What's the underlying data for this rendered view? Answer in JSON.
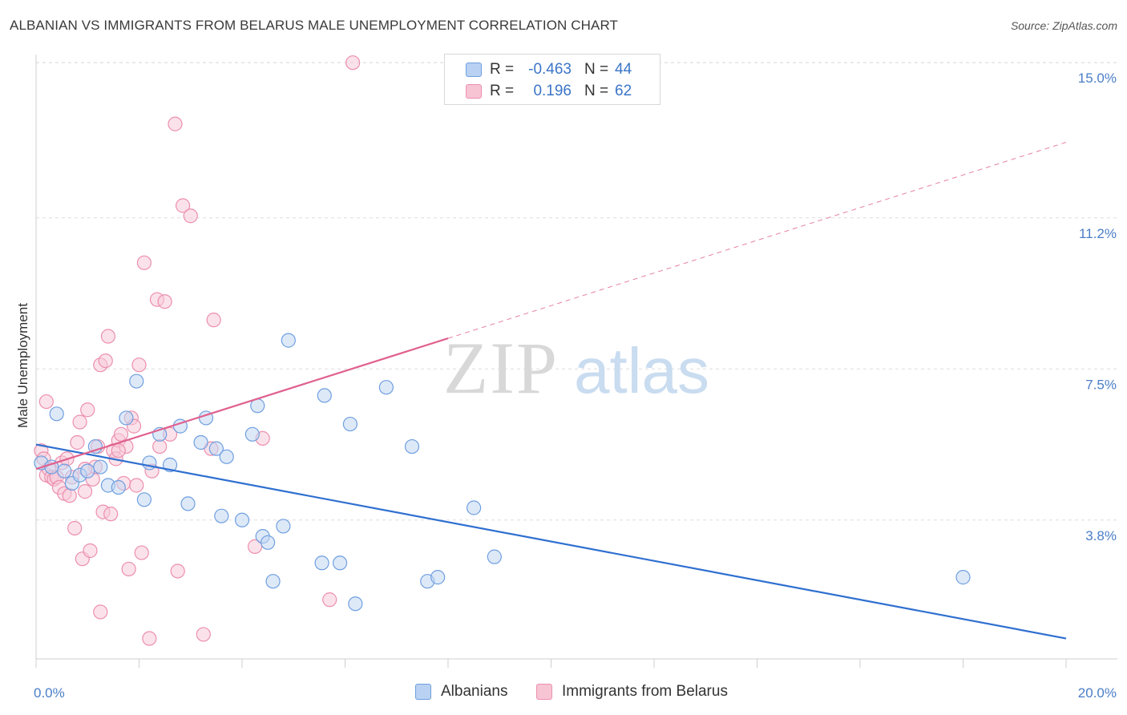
{
  "title": "ALBANIAN VS IMMIGRANTS FROM BELARUS MALE UNEMPLOYMENT CORRELATION CHART",
  "source": "Source: ZipAtlas.com",
  "watermark": {
    "zip": "ZIP",
    "atlas": "atlas"
  },
  "legend": {
    "rows": [
      {
        "r_label": "R =",
        "r_value": "-0.463",
        "n_label": "N =",
        "n_value": "44",
        "fill": "#b9d1f2",
        "stroke": "#6f9fe0"
      },
      {
        "r_label": "R =",
        "r_value": "0.196",
        "n_label": "N =",
        "n_value": "62",
        "fill": "#f7c4d4",
        "stroke": "#ec8fae"
      }
    ]
  },
  "bottom_legend": {
    "albanians": "Albanians",
    "belarus": "Immigrants from Belarus"
  },
  "chart_data": {
    "type": "scatter",
    "ylabel": "Male Unemployment",
    "xlim": [
      0,
      20
    ],
    "ylim": [
      0.4,
      15.2
    ],
    "x_ticks": [
      {
        "value": 0,
        "label": "0.0%"
      },
      {
        "value": 20,
        "label": "20.0%"
      }
    ],
    "y_ticks": [
      {
        "value": 3.8,
        "label": "3.8%"
      },
      {
        "value": 7.5,
        "label": "7.5%"
      },
      {
        "value": 11.2,
        "label": "11.2%"
      },
      {
        "value": 15.0,
        "label": "15.0%"
      }
    ],
    "grid": true,
    "colors": {
      "albanians": "#6f9fe0",
      "albanians_fill": "#c2d7f3",
      "belarus": "#ec8fae",
      "belarus_fill": "#f8cbd9",
      "albanians_line": "#2f6fd0",
      "belarus_line": "#e0608e"
    },
    "series": [
      {
        "name": "Albanians",
        "points": [
          [
            0.1,
            5.2
          ],
          [
            0.3,
            5.1
          ],
          [
            0.4,
            6.4
          ],
          [
            0.55,
            5.0
          ],
          [
            0.7,
            4.7
          ],
          [
            0.85,
            4.9
          ],
          [
            1.0,
            5.0
          ],
          [
            1.15,
            5.6
          ],
          [
            1.25,
            5.1
          ],
          [
            1.4,
            4.65
          ],
          [
            1.6,
            4.6
          ],
          [
            1.75,
            6.3
          ],
          [
            1.95,
            7.2
          ],
          [
            2.1,
            4.3
          ],
          [
            2.2,
            5.2
          ],
          [
            2.4,
            5.9
          ],
          [
            2.6,
            5.15
          ],
          [
            2.8,
            6.1
          ],
          [
            2.95,
            4.2
          ],
          [
            3.2,
            5.7
          ],
          [
            3.3,
            6.3
          ],
          [
            3.5,
            5.55
          ],
          [
            3.7,
            5.35
          ],
          [
            3.6,
            3.9
          ],
          [
            4.0,
            3.8
          ],
          [
            4.2,
            5.9
          ],
          [
            4.3,
            6.6
          ],
          [
            4.4,
            3.4
          ],
          [
            4.8,
            3.65
          ],
          [
            4.5,
            3.25
          ],
          [
            4.9,
            8.2
          ],
          [
            4.6,
            2.3
          ],
          [
            5.6,
            6.85
          ],
          [
            5.55,
            2.75
          ],
          [
            5.9,
            2.75
          ],
          [
            6.1,
            6.15
          ],
          [
            6.2,
            1.75
          ],
          [
            6.8,
            7.05
          ],
          [
            7.3,
            5.6
          ],
          [
            7.6,
            2.3
          ],
          [
            7.8,
            2.4
          ],
          [
            8.5,
            4.1
          ],
          [
            8.9,
            2.9
          ],
          [
            18.0,
            2.4
          ]
        ]
      },
      {
        "name": "Immigrants from Belarus",
        "points": [
          [
            0.1,
            5.5
          ],
          [
            0.15,
            5.3
          ],
          [
            0.2,
            4.9
          ],
          [
            0.25,
            5.05
          ],
          [
            0.3,
            4.85
          ],
          [
            0.35,
            4.8
          ],
          [
            0.2,
            6.7
          ],
          [
            0.4,
            4.85
          ],
          [
            0.45,
            4.6
          ],
          [
            0.5,
            5.2
          ],
          [
            0.55,
            4.45
          ],
          [
            0.6,
            5.3
          ],
          [
            0.65,
            4.4
          ],
          [
            0.7,
            4.85
          ],
          [
            0.75,
            3.6
          ],
          [
            0.8,
            5.7
          ],
          [
            0.85,
            6.2
          ],
          [
            0.9,
            2.85
          ],
          [
            0.95,
            4.5
          ],
          [
            1.0,
            6.5
          ],
          [
            1.05,
            3.05
          ],
          [
            1.1,
            4.8
          ],
          [
            1.15,
            5.1
          ],
          [
            1.2,
            5.6
          ],
          [
            1.25,
            7.6
          ],
          [
            1.3,
            4.0
          ],
          [
            1.35,
            7.7
          ],
          [
            1.4,
            8.3
          ],
          [
            1.45,
            3.95
          ],
          [
            1.5,
            5.5
          ],
          [
            1.55,
            5.3
          ],
          [
            1.6,
            5.75
          ],
          [
            1.65,
            5.9
          ],
          [
            1.7,
            4.7
          ],
          [
            1.75,
            5.6
          ],
          [
            1.8,
            2.6
          ],
          [
            1.85,
            6.3
          ],
          [
            1.9,
            6.1
          ],
          [
            1.95,
            4.65
          ],
          [
            2.0,
            7.6
          ],
          [
            2.05,
            3.0
          ],
          [
            2.1,
            10.1
          ],
          [
            2.2,
            0.9
          ],
          [
            2.25,
            5.0
          ],
          [
            2.35,
            9.2
          ],
          [
            2.4,
            5.6
          ],
          [
            2.5,
            9.15
          ],
          [
            2.6,
            5.9
          ],
          [
            2.7,
            13.5
          ],
          [
            2.75,
            2.55
          ],
          [
            2.85,
            11.5
          ],
          [
            3.0,
            11.25
          ],
          [
            3.25,
            1.0
          ],
          [
            3.4,
            5.55
          ],
          [
            3.45,
            8.7
          ],
          [
            1.25,
            1.55
          ],
          [
            4.25,
            3.15
          ],
          [
            4.4,
            5.8
          ],
          [
            5.7,
            1.85
          ],
          [
            6.15,
            15.0
          ],
          [
            0.95,
            5.05
          ],
          [
            1.6,
            5.5
          ]
        ]
      }
    ],
    "trendlines": [
      {
        "series": "Albanians",
        "x": [
          0,
          20
        ],
        "y": [
          5.65,
          0.9
        ]
      },
      {
        "series": "Immigrants from Belarus",
        "x": [
          0,
          8.0
        ],
        "y": [
          5.05,
          8.25
        ],
        "dashed_extension": {
          "x": [
            8.0,
            20
          ],
          "y": [
            8.25,
            13.05
          ]
        }
      }
    ]
  }
}
